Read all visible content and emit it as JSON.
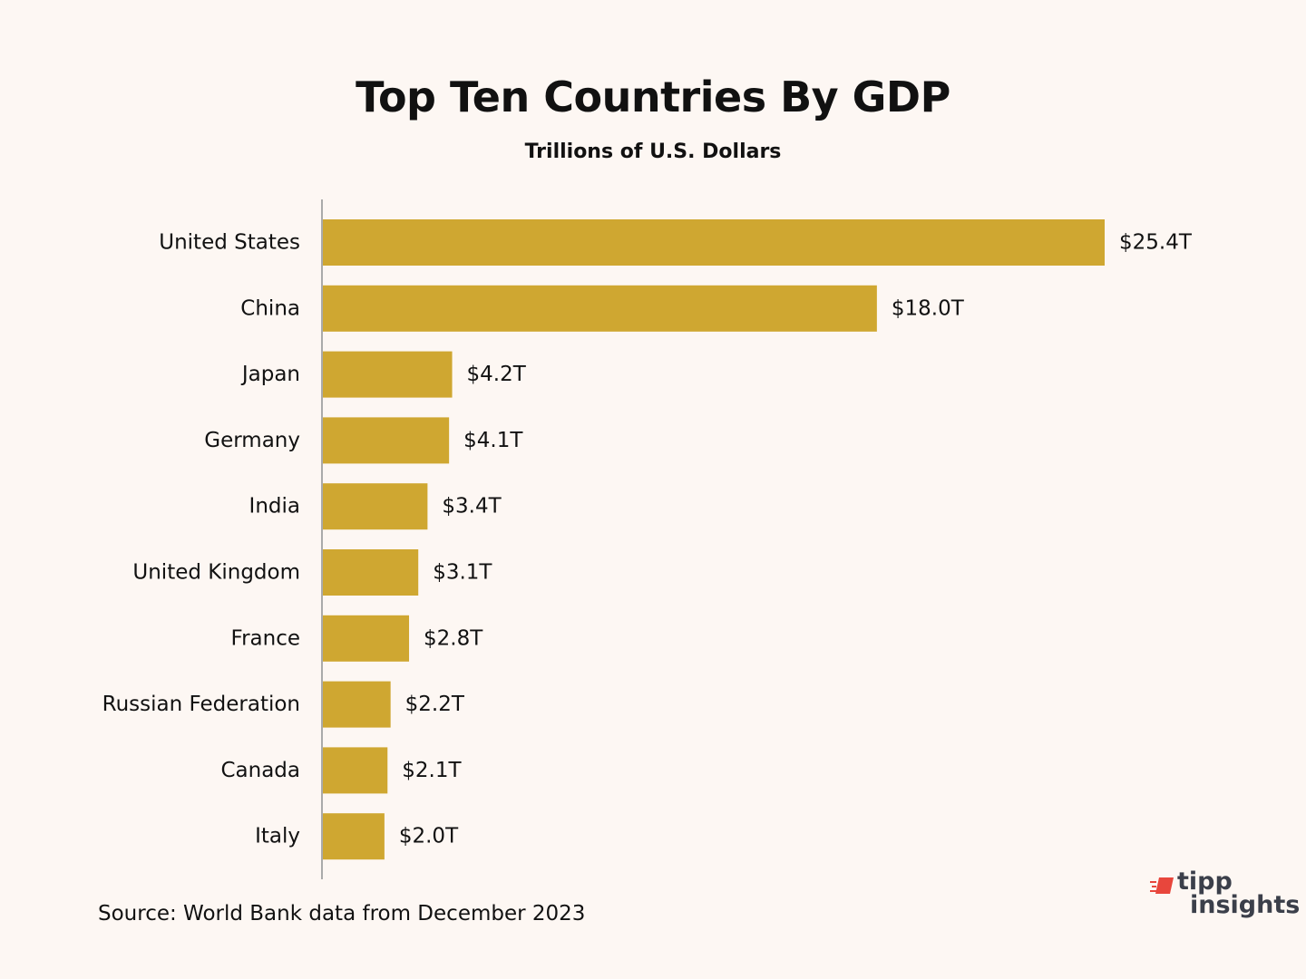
{
  "chart_data": {
    "type": "bar",
    "orientation": "horizontal",
    "title": "Top Ten Countries By GDP",
    "subtitle": "Trillions of U.S. Dollars",
    "categories": [
      "United States",
      "China",
      "Japan",
      "Germany",
      "India",
      "United Kingdom",
      "France",
      "Russian Federation",
      "Canada",
      "Italy"
    ],
    "values": [
      25.4,
      18.0,
      4.2,
      4.1,
      3.4,
      3.1,
      2.8,
      2.2,
      2.1,
      2.0
    ],
    "value_labels": [
      "$25.4T",
      "$18.0T",
      "$4.2T",
      "$4.1T",
      "$3.4T",
      "$3.1T",
      "$2.8T",
      "$2.2T",
      "$2.1T",
      "$2.0T"
    ],
    "xlim": [
      0,
      25.4
    ],
    "grid": false,
    "bar_color": "#cfa731",
    "axis_color": "#aaaaaa"
  },
  "footer": {
    "source": "Source: World Bank data from December 2023"
  },
  "logo": {
    "line1": "tipp",
    "line2": "insights",
    "accent_color": "#e8463c",
    "text_color": "#3b3f4a"
  }
}
